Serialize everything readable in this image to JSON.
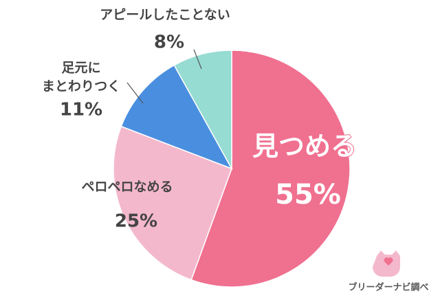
{
  "chart_data": {
    "type": "pie",
    "categories": [
      "見つめる",
      "ペロペロなめる",
      "足元に\nまとわりつく",
      "アピールしたことない"
    ],
    "values": [
      55,
      25,
      11,
      8
    ],
    "value_labels": [
      "55%",
      "25%",
      "11%",
      "8%"
    ],
    "colors": [
      "#f07090",
      "#f4b8cc",
      "#4a8fdf",
      "#96dcd2"
    ],
    "source": "ブリーダーナビ調べ"
  }
}
